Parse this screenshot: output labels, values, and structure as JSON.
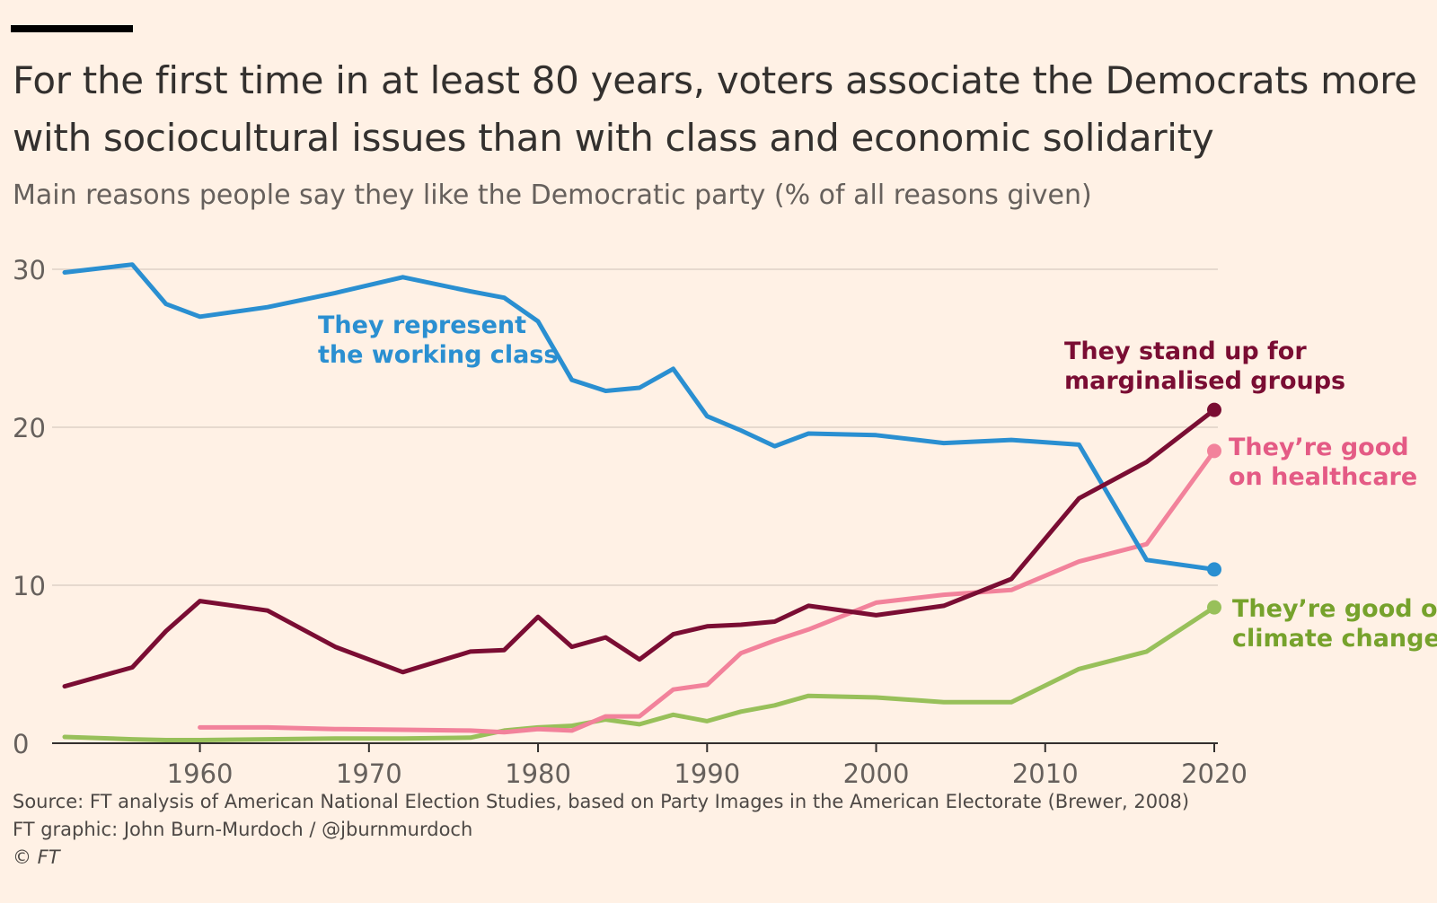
{
  "header": {
    "title": "For the first time in at least 80 years, voters associate the Democrats more with sociocultural issues than with class and economic solidarity",
    "subtitle": "Main reasons people say they like the Democratic party (% of all reasons given)"
  },
  "footer": {
    "source": "Source: FT analysis of American National Election Studies, based on Party Images in the American Electorate (Brewer, 2008)",
    "credit": "FT graphic: John Burn-Murdoch / @jburnmurdoch",
    "copyright": "© FT"
  },
  "chart_data": {
    "type": "line",
    "xlim": [
      1952,
      2020
    ],
    "ylim": [
      0,
      30
    ],
    "x_ticks": [
      1960,
      1970,
      1980,
      1990,
      2000,
      2010,
      2020
    ],
    "y_ticks": [
      0,
      10,
      20,
      30
    ],
    "grid": "horizontal",
    "series": [
      {
        "label_lines": [
          "They represent",
          "the working class"
        ],
        "color": "#2a8fd1",
        "label_color": "#2a8fd1",
        "end_marker": true,
        "points": [
          [
            1952,
            29.8
          ],
          [
            1956,
            30.3
          ],
          [
            1958,
            27.8
          ],
          [
            1960,
            27.0
          ],
          [
            1964,
            27.6
          ],
          [
            1968,
            28.5
          ],
          [
            1972,
            29.5
          ],
          [
            1976,
            28.6
          ],
          [
            1978,
            28.2
          ],
          [
            1980,
            26.7
          ],
          [
            1982,
            23.0
          ],
          [
            1984,
            22.3
          ],
          [
            1986,
            22.5
          ],
          [
            1988,
            23.7
          ],
          [
            1990,
            20.7
          ],
          [
            1992,
            19.8
          ],
          [
            1994,
            18.8
          ],
          [
            1996,
            19.6
          ],
          [
            2000,
            19.5
          ],
          [
            2004,
            19.0
          ],
          [
            2008,
            19.2
          ],
          [
            2012,
            18.9
          ],
          [
            2016,
            11.6
          ],
          [
            2020,
            11.0
          ]
        ]
      },
      {
        "label_lines": [
          "They stand up for",
          "marginalised groups"
        ],
        "color": "#7a0d33",
        "label_color": "#7a0d33",
        "end_marker": true,
        "points": [
          [
            1952,
            3.6
          ],
          [
            1956,
            4.8
          ],
          [
            1958,
            7.1
          ],
          [
            1960,
            9.0
          ],
          [
            1964,
            8.4
          ],
          [
            1968,
            6.1
          ],
          [
            1972,
            4.5
          ],
          [
            1976,
            5.8
          ],
          [
            1978,
            5.9
          ],
          [
            1980,
            8.0
          ],
          [
            1982,
            6.1
          ],
          [
            1984,
            6.7
          ],
          [
            1986,
            5.3
          ],
          [
            1988,
            6.9
          ],
          [
            1990,
            7.4
          ],
          [
            1992,
            7.5
          ],
          [
            1994,
            7.7
          ],
          [
            1996,
            8.7
          ],
          [
            2000,
            8.1
          ],
          [
            2004,
            8.7
          ],
          [
            2008,
            10.4
          ],
          [
            2012,
            15.5
          ],
          [
            2016,
            17.8
          ],
          [
            2020,
            21.1
          ]
        ]
      },
      {
        "label_lines": [
          "They’re good",
          "on healthcare"
        ],
        "color": "#f2829b",
        "label_color": "#e45b85",
        "end_marker": true,
        "points": [
          [
            1960,
            1.0
          ],
          [
            1964,
            1.0
          ],
          [
            1968,
            0.9
          ],
          [
            1972,
            0.85
          ],
          [
            1976,
            0.8
          ],
          [
            1978,
            0.7
          ],
          [
            1980,
            0.9
          ],
          [
            1982,
            0.8
          ],
          [
            1984,
            1.7
          ],
          [
            1986,
            1.7
          ],
          [
            1988,
            3.4
          ],
          [
            1990,
            3.7
          ],
          [
            1992,
            5.7
          ],
          [
            1994,
            6.5
          ],
          [
            1996,
            7.2
          ],
          [
            2000,
            8.9
          ],
          [
            2004,
            9.4
          ],
          [
            2008,
            9.7
          ],
          [
            2012,
            11.5
          ],
          [
            2016,
            12.6
          ],
          [
            2020,
            18.5
          ]
        ]
      },
      {
        "label_lines": [
          "They’re good on",
          "climate change"
        ],
        "color": "#98c05a",
        "label_color": "#76a22c",
        "end_marker": true,
        "points": [
          [
            1952,
            0.4
          ],
          [
            1956,
            0.25
          ],
          [
            1958,
            0.2
          ],
          [
            1960,
            0.2
          ],
          [
            1964,
            0.25
          ],
          [
            1968,
            0.3
          ],
          [
            1972,
            0.3
          ],
          [
            1976,
            0.35
          ],
          [
            1978,
            0.8
          ],
          [
            1980,
            1.0
          ],
          [
            1982,
            1.1
          ],
          [
            1984,
            1.5
          ],
          [
            1986,
            1.2
          ],
          [
            1988,
            1.8
          ],
          [
            1990,
            1.4
          ],
          [
            1992,
            2.0
          ],
          [
            1994,
            2.4
          ],
          [
            1996,
            3.0
          ],
          [
            2000,
            2.9
          ],
          [
            2004,
            2.6
          ],
          [
            2008,
            2.6
          ],
          [
            2012,
            4.7
          ],
          [
            2016,
            5.8
          ],
          [
            2020,
            8.6
          ]
        ]
      }
    ]
  }
}
